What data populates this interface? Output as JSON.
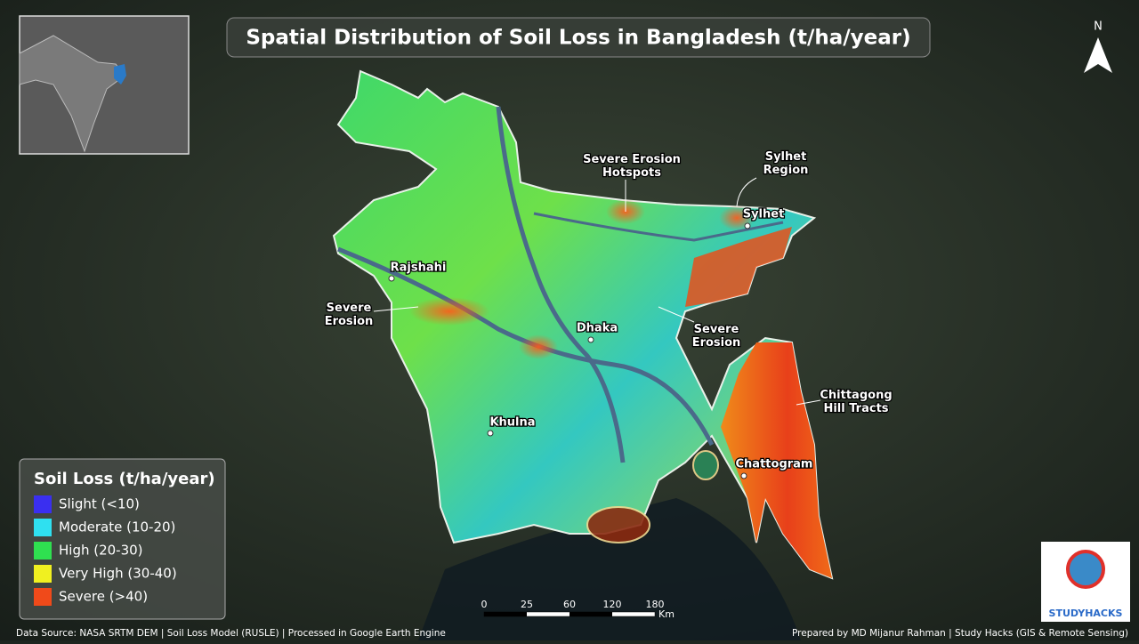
{
  "header": {
    "title": "Spatial Distribution of Soil Loss in Bangladesh (t/ha/year)"
  },
  "north": "N",
  "places": [
    {
      "label": "Rajshahi"
    },
    {
      "label": "Dhaka"
    },
    {
      "label": "Khulna"
    },
    {
      "label": "Sylhet"
    },
    {
      "label": "Chattogram"
    }
  ],
  "annotations": [
    {
      "lines": [
        "Severe Erosion",
        "Hotspots"
      ]
    },
    {
      "lines": [
        "Sylhet",
        "Region"
      ]
    },
    {
      "lines": [
        "Severe",
        "Erosion"
      ]
    },
    {
      "lines": [
        "Severe",
        "Erosion"
      ]
    },
    {
      "lines": [
        "Chittagong",
        "Hill Tracts"
      ]
    }
  ],
  "legend": {
    "title": "Soil Loss (t/ha/year)",
    "items": [
      {
        "label": "Slight (<10)",
        "color": "#3a2ff0"
      },
      {
        "label": "Moderate (10-20)",
        "color": "#2fe0f0"
      },
      {
        "label": "High (20-30)",
        "color": "#2fe050"
      },
      {
        "label": "Very High (30-40)",
        "color": "#f0f020"
      },
      {
        "label": "Severe (>40)",
        "color": "#f04a1a"
      }
    ]
  },
  "scale": {
    "ticks": [
      0,
      25,
      60,
      120,
      180
    ],
    "unit": "Km"
  },
  "footer": {
    "source": "Data Source: NASA SRTM DEM | Soil Loss Model (RUSLE) | Processed in Google Earth Engine",
    "credit": "Prepared by MD Mijanur Rahman | Study Hacks (GIS & Remote Sensing)"
  },
  "logo": {
    "text": "STUDYHACKS"
  }
}
